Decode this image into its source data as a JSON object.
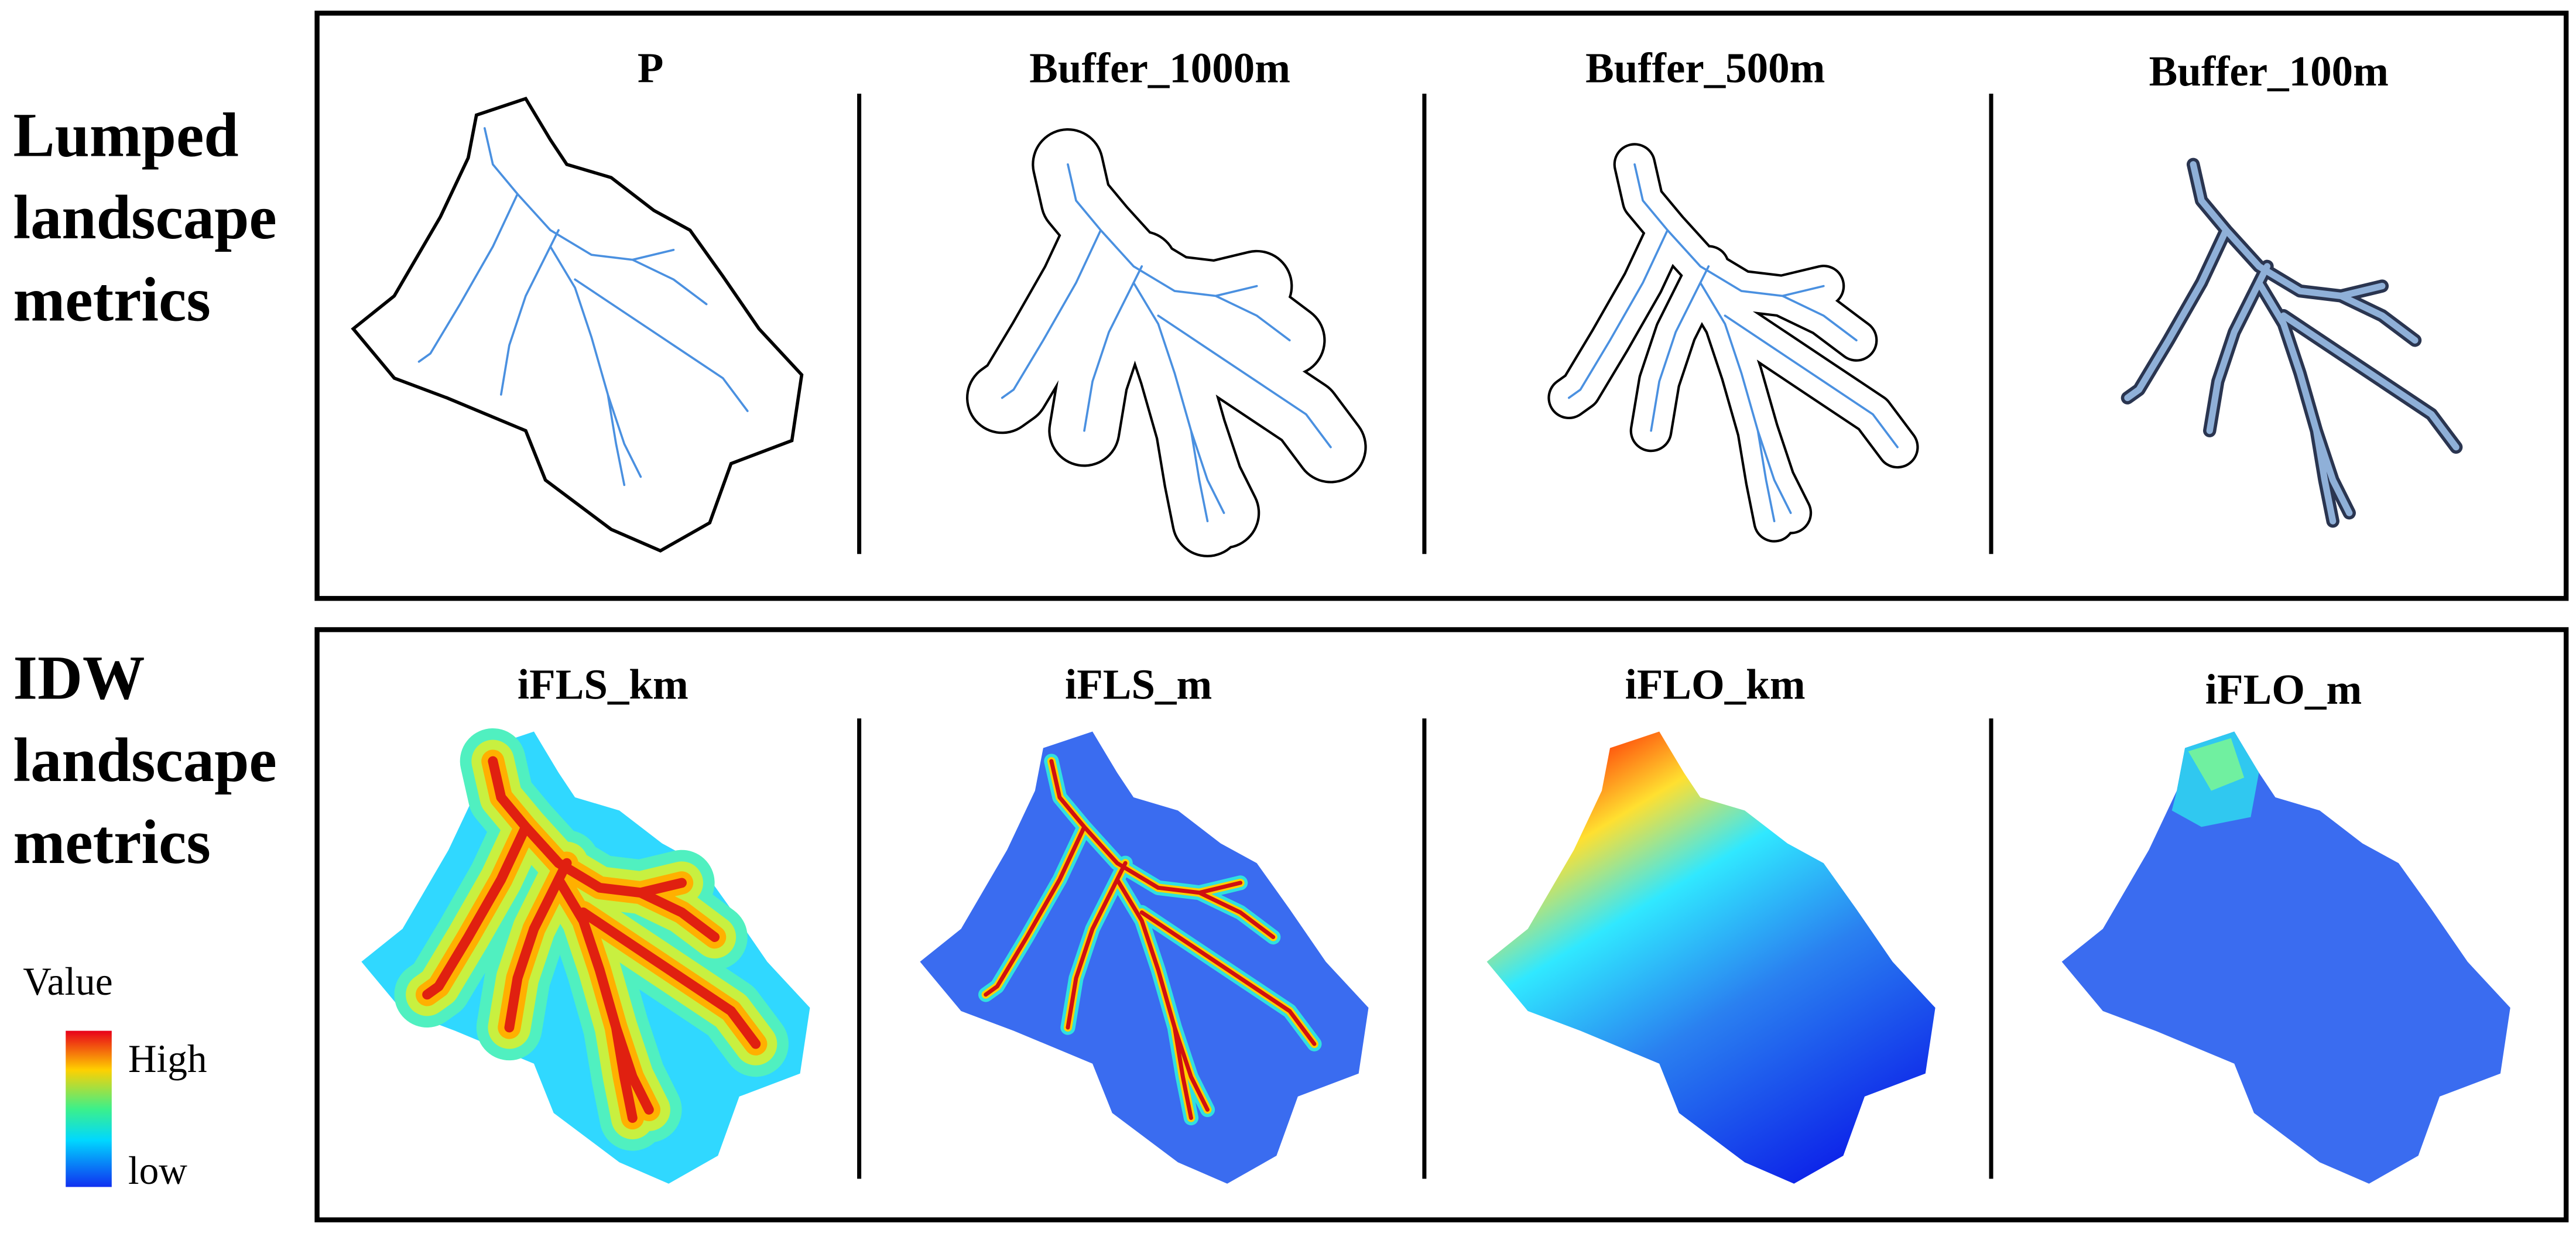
{
  "rows": [
    {
      "label": [
        "Lumped",
        "landscape",
        "metrics"
      ],
      "panels": [
        "P",
        "Buffer_1000m",
        "Buffer_500m",
        "Buffer_100m"
      ]
    },
    {
      "label": [
        "IDW",
        "landscape",
        "metrics"
      ],
      "panels": [
        "iFLS_km",
        "iFLS_m",
        "iFLO_km",
        "iFLO_m"
      ]
    }
  ],
  "legend": {
    "title": "Value",
    "high": "High",
    "low": "low"
  }
}
